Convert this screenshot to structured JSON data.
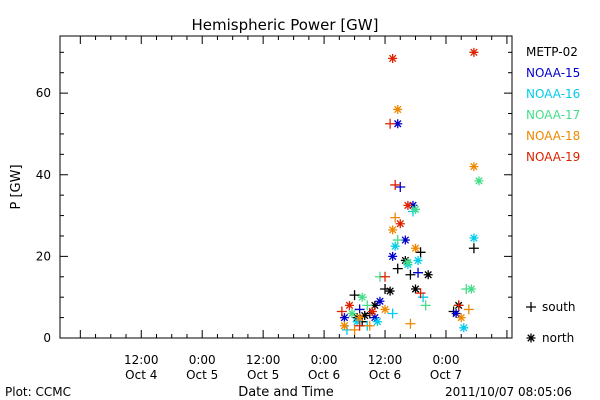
{
  "chart_data": {
    "type": "scatter",
    "title": "Hemispheric Power [GW]",
    "xlabel": "Date and Time",
    "ylabel": "P [GW]",
    "footer_left": "Plot: CCMC",
    "footer_right": "2011/10/07 08:05:06",
    "xlim": [
      "2011-10-03T20:00",
      "2011-10-07T13:00"
    ],
    "ylim": [
      0,
      74
    ],
    "y_ticks": [
      0,
      20,
      40,
      60
    ],
    "x_ticks": [
      {
        "time": "2011-10-04T12:00",
        "line1": "12:00",
        "line2": "Oct 4"
      },
      {
        "time": "2011-10-05T00:00",
        "line1": "0:00",
        "line2": "Oct 5"
      },
      {
        "time": "2011-10-05T12:00",
        "line1": "12:00",
        "line2": "Oct 5"
      },
      {
        "time": "2011-10-06T00:00",
        "line1": "0:00",
        "line2": "Oct 6"
      },
      {
        "time": "2011-10-06T12:00",
        "line1": "12:00",
        "line2": "Oct 6"
      },
      {
        "time": "2011-10-07T00:00",
        "line1": "0:00",
        "line2": "Oct 7"
      }
    ],
    "marker_legend": [
      {
        "symbol": "+",
        "label": "south"
      },
      {
        "symbol": "*",
        "label": "north"
      }
    ],
    "series": [
      {
        "name": "METP-02",
        "color": "#000000",
        "points": [
          {
            "x": "2011-10-06T06:00",
            "y": 10.5,
            "m": "+"
          },
          {
            "x": "2011-10-06T06:30",
            "y": 5,
            "m": "*"
          },
          {
            "x": "2011-10-06T07:30",
            "y": 4,
            "m": "+"
          },
          {
            "x": "2011-10-06T08:00",
            "y": 5.5,
            "m": "*"
          },
          {
            "x": "2011-10-06T09:00",
            "y": 6,
            "m": "+"
          },
          {
            "x": "2011-10-06T10:00",
            "y": 8,
            "m": "*"
          },
          {
            "x": "2011-10-06T12:00",
            "y": 12,
            "m": "+"
          },
          {
            "x": "2011-10-06T13:00",
            "y": 11.5,
            "m": "*"
          },
          {
            "x": "2011-10-06T14:30",
            "y": 17,
            "m": "+"
          },
          {
            "x": "2011-10-06T16:00",
            "y": 19,
            "m": "*"
          },
          {
            "x": "2011-10-06T17:00",
            "y": 15.5,
            "m": "+"
          },
          {
            "x": "2011-10-06T18:00",
            "y": 12,
            "m": "*"
          },
          {
            "x": "2011-10-06T19:00",
            "y": 21,
            "m": "+"
          },
          {
            "x": "2011-10-06T20:30",
            "y": 15.5,
            "m": "*"
          },
          {
            "x": "2011-10-07T01:30",
            "y": 6.5,
            "m": "+"
          },
          {
            "x": "2011-10-07T02:30",
            "y": 8,
            "m": "*"
          },
          {
            "x": "2011-10-07T05:30",
            "y": 22,
            "m": "+"
          }
        ]
      },
      {
        "name": "NOAA-15",
        "color": "#0000cc",
        "points": [
          {
            "x": "2011-10-06T04:00",
            "y": 5,
            "m": "*"
          },
          {
            "x": "2011-10-06T07:00",
            "y": 7,
            "m": "+"
          },
          {
            "x": "2011-10-06T10:00",
            "y": 5,
            "m": "*"
          },
          {
            "x": "2011-10-06T11:00",
            "y": 9,
            "m": "*"
          },
          {
            "x": "2011-10-06T13:30",
            "y": 20,
            "m": "*"
          },
          {
            "x": "2011-10-06T14:30",
            "y": 52.5,
            "m": "*"
          },
          {
            "x": "2011-10-06T15:00",
            "y": 37,
            "m": "+"
          },
          {
            "x": "2011-10-06T16:00",
            "y": 24,
            "m": "*"
          },
          {
            "x": "2011-10-06T17:30",
            "y": 32.5,
            "m": "*"
          },
          {
            "x": "2011-10-06T18:30",
            "y": 16,
            "m": "+"
          },
          {
            "x": "2011-10-07T02:00",
            "y": 6,
            "m": "*"
          }
        ]
      },
      {
        "name": "NOAA-16",
        "color": "#00ccee",
        "points": [
          {
            "x": "2011-10-06T04:30",
            "y": 2,
            "m": "+"
          },
          {
            "x": "2011-10-06T06:30",
            "y": 4,
            "m": "*"
          },
          {
            "x": "2011-10-06T08:30",
            "y": 3,
            "m": "+"
          },
          {
            "x": "2011-10-06T10:30",
            "y": 4,
            "m": "*"
          },
          {
            "x": "2011-10-06T13:30",
            "y": 6,
            "m": "+"
          },
          {
            "x": "2011-10-06T14:00",
            "y": 22.5,
            "m": "*"
          },
          {
            "x": "2011-10-06T16:30",
            "y": 18,
            "m": "*"
          },
          {
            "x": "2011-10-06T17:30",
            "y": 31,
            "m": "+"
          },
          {
            "x": "2011-10-06T18:30",
            "y": 19,
            "m": "*"
          },
          {
            "x": "2011-10-06T19:30",
            "y": 10,
            "m": "+"
          },
          {
            "x": "2011-10-07T03:30",
            "y": 2.5,
            "m": "*"
          },
          {
            "x": "2011-10-07T05:30",
            "y": 24.5,
            "m": "*"
          }
        ]
      },
      {
        "name": "NOAA-17",
        "color": "#44dd88",
        "points": [
          {
            "x": "2011-10-06T05:30",
            "y": 6,
            "m": "*"
          },
          {
            "x": "2011-10-06T07:30",
            "y": 10,
            "m": "*"
          },
          {
            "x": "2011-10-06T08:30",
            "y": 8,
            "m": "+"
          },
          {
            "x": "2011-10-06T11:00",
            "y": 15,
            "m": "+"
          },
          {
            "x": "2011-10-06T14:30",
            "y": 24,
            "m": "+"
          },
          {
            "x": "2011-10-06T16:30",
            "y": 18.5,
            "m": "*"
          },
          {
            "x": "2011-10-06T18:00",
            "y": 31.5,
            "m": "*"
          },
          {
            "x": "2011-10-06T20:00",
            "y": 8,
            "m": "+"
          },
          {
            "x": "2011-10-07T04:00",
            "y": 12,
            "m": "+"
          },
          {
            "x": "2011-10-07T05:00",
            "y": 12,
            "m": "*"
          },
          {
            "x": "2011-10-07T06:30",
            "y": 38.5,
            "m": "*"
          }
        ]
      },
      {
        "name": "NOAA-18",
        "color": "#ee8800",
        "points": [
          {
            "x": "2011-10-06T04:00",
            "y": 3,
            "m": "*"
          },
          {
            "x": "2011-10-06T06:00",
            "y": 2,
            "m": "+"
          },
          {
            "x": "2011-10-06T07:00",
            "y": 5,
            "m": "*"
          },
          {
            "x": "2011-10-06T09:00",
            "y": 3,
            "m": "+"
          },
          {
            "x": "2011-10-06T12:00",
            "y": 7,
            "m": "*"
          },
          {
            "x": "2011-10-06T13:30",
            "y": 26.5,
            "m": "*"
          },
          {
            "x": "2011-10-06T14:00",
            "y": 29.5,
            "m": "+"
          },
          {
            "x": "2011-10-06T14:30",
            "y": 56,
            "m": "*"
          },
          {
            "x": "2011-10-06T17:00",
            "y": 3.5,
            "m": "+"
          },
          {
            "x": "2011-10-06T18:00",
            "y": 22,
            "m": "*"
          },
          {
            "x": "2011-10-07T03:00",
            "y": 5,
            "m": "*"
          },
          {
            "x": "2011-10-07T04:30",
            "y": 7,
            "m": "+"
          },
          {
            "x": "2011-10-07T05:30",
            "y": 42,
            "m": "*"
          }
        ]
      },
      {
        "name": "NOAA-19",
        "color": "#dd2200",
        "points": [
          {
            "x": "2011-10-06T03:30",
            "y": 6.5,
            "m": "+"
          },
          {
            "x": "2011-10-06T05:00",
            "y": 8,
            "m": "*"
          },
          {
            "x": "2011-10-06T07:00",
            "y": 3,
            "m": "+"
          },
          {
            "x": "2011-10-06T09:30",
            "y": 6.5,
            "m": "*"
          },
          {
            "x": "2011-10-06T12:00",
            "y": 15,
            "m": "+"
          },
          {
            "x": "2011-10-06T13:00",
            "y": 52.5,
            "m": "+"
          },
          {
            "x": "2011-10-06T13:30",
            "y": 68.5,
            "m": "*"
          },
          {
            "x": "2011-10-06T14:00",
            "y": 37.5,
            "m": "+"
          },
          {
            "x": "2011-10-06T15:00",
            "y": 28,
            "m": "*"
          },
          {
            "x": "2011-10-06T16:30",
            "y": 32.5,
            "m": "*"
          },
          {
            "x": "2011-10-06T19:00",
            "y": 11,
            "m": "+"
          },
          {
            "x": "2011-10-07T02:30",
            "y": 8,
            "m": "+"
          },
          {
            "x": "2011-10-07T05:30",
            "y": 70,
            "m": "*"
          }
        ]
      }
    ]
  }
}
